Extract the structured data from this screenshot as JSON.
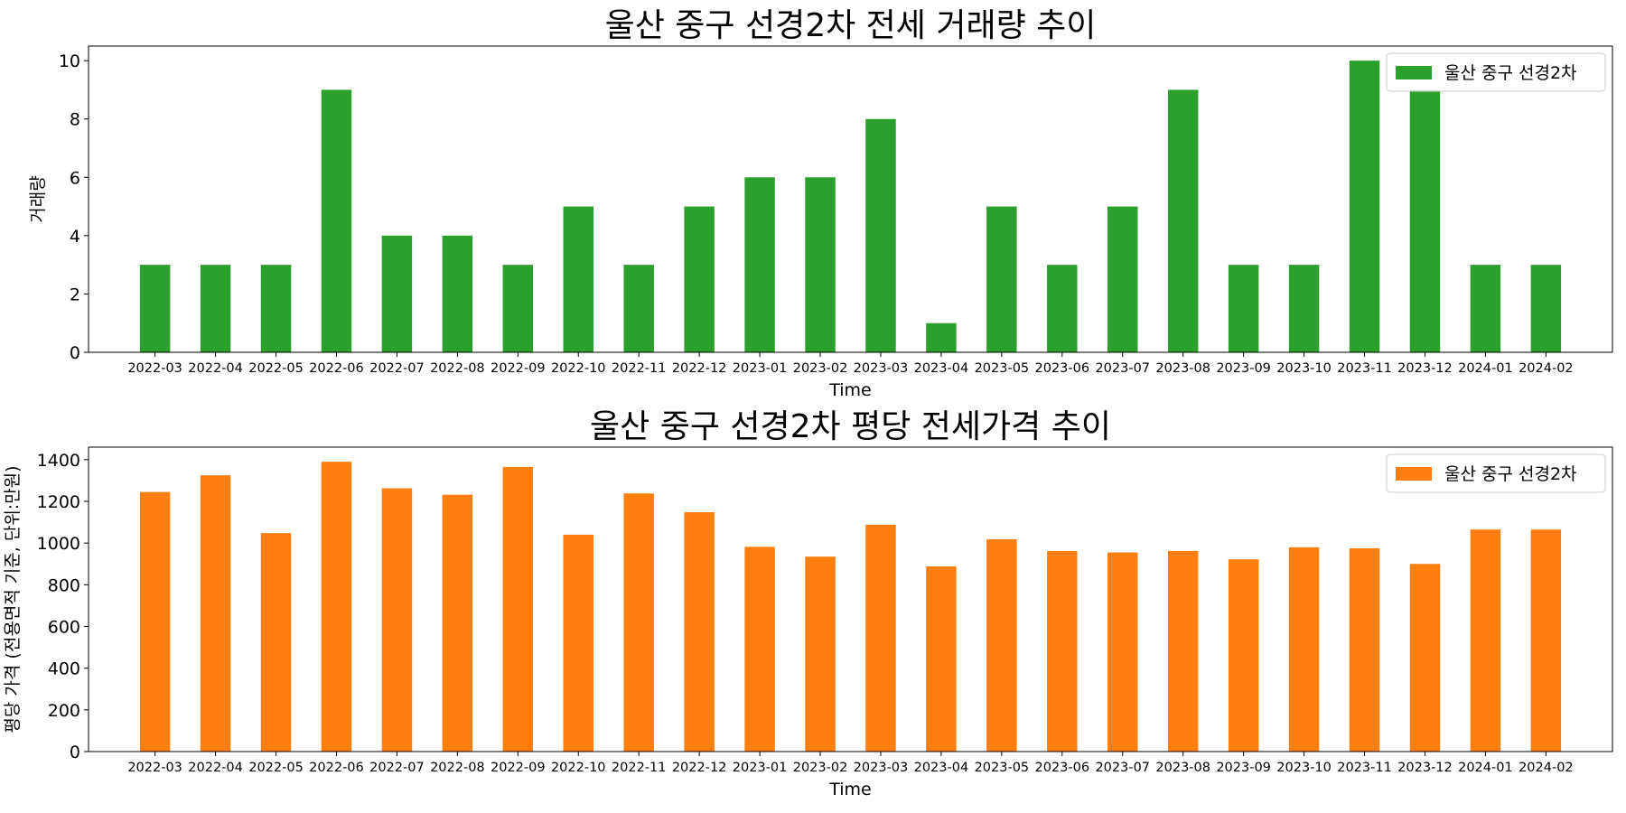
{
  "chart_data": [
    {
      "type": "bar",
      "title": "울산 중구 선경2차 전세 거래량 추이",
      "xlabel": "Time",
      "ylabel": "거래량",
      "categories": [
        "2022-03",
        "2022-04",
        "2022-05",
        "2022-06",
        "2022-07",
        "2022-08",
        "2022-09",
        "2022-10",
        "2022-11",
        "2022-12",
        "2023-01",
        "2023-02",
        "2023-03",
        "2023-04",
        "2023-05",
        "2023-06",
        "2023-07",
        "2023-08",
        "2023-09",
        "2023-10",
        "2023-11",
        "2023-12",
        "2024-01",
        "2024-02"
      ],
      "series": [
        {
          "name": "울산 중구 선경2차",
          "color": "#2ca02c",
          "values": [
            3,
            3,
            3,
            9,
            4,
            4,
            3,
            5,
            3,
            5,
            6,
            6,
            8,
            1,
            5,
            3,
            5,
            9,
            3,
            3,
            10,
            9,
            3,
            3
          ]
        }
      ],
      "ylim": [
        0,
        10.5
      ],
      "yticks": [
        0,
        2,
        4,
        6,
        8,
        10
      ],
      "legend": "top-right",
      "grid": false
    },
    {
      "type": "bar",
      "title": "울산 중구 선경2차 평당 전세가격 추이",
      "xlabel": "Time",
      "ylabel": "평당 가격 (전용면적 기준, 단위:만원)",
      "categories": [
        "2022-03",
        "2022-04",
        "2022-05",
        "2022-06",
        "2022-07",
        "2022-08",
        "2022-09",
        "2022-10",
        "2022-11",
        "2022-12",
        "2023-01",
        "2023-02",
        "2023-03",
        "2023-04",
        "2023-05",
        "2023-06",
        "2023-07",
        "2023-08",
        "2023-09",
        "2023-10",
        "2023-11",
        "2023-12",
        "2024-01",
        "2024-02"
      ],
      "series": [
        {
          "name": "울산 중구 선경2차",
          "color": "#ff7f0e",
          "values": [
            1245,
            1325,
            1048,
            1390,
            1263,
            1232,
            1365,
            1040,
            1238,
            1148,
            982,
            935,
            1088,
            888,
            1018,
            962,
            955,
            962,
            922,
            980,
            975,
            900,
            1065,
            1065
          ]
        }
      ],
      "ylim": [
        0,
        1460
      ],
      "yticks": [
        0,
        200,
        400,
        600,
        800,
        1000,
        1200,
        1400
      ],
      "legend": "top-right",
      "grid": false
    }
  ]
}
